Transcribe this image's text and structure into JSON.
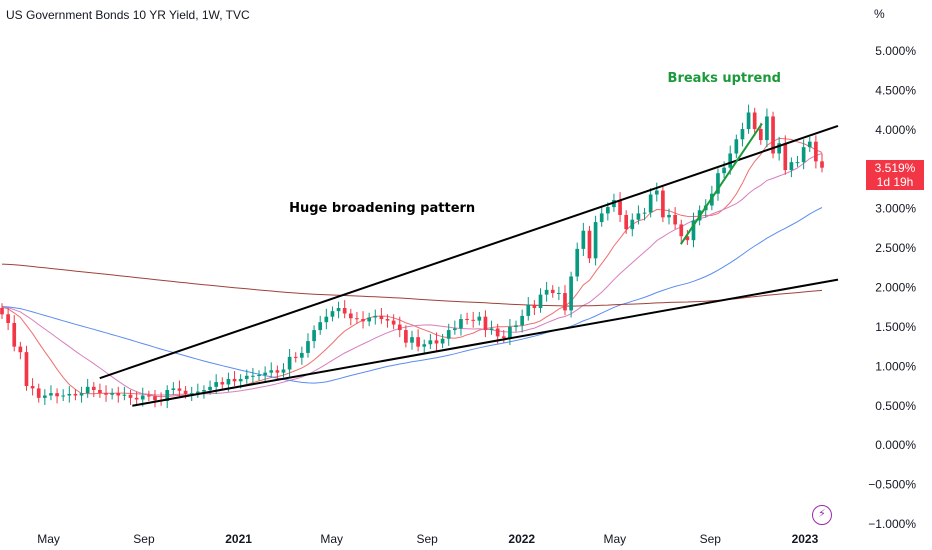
{
  "header": {
    "title": "US Government Bonds 10 YR Yield, 1W, TVC",
    "unit": "%"
  },
  "price_badge": {
    "value": "3.519%",
    "countdown": "1d 19h"
  },
  "colors": {
    "up": "#089981",
    "down": "#f23645",
    "trendline": "#000000",
    "annotation_green": "#1a9a3a",
    "ma_fast": "#f06e6e",
    "ma_pink": "#d77fc1",
    "ma_blue": "#5b8def",
    "ma_brown": "#a0403a"
  },
  "chart_data": {
    "type": "candlestick",
    "ylim": [
      -1.0,
      5.0
    ],
    "yticks": [
      "5.000%",
      "4.500%",
      "4.000%",
      "3.000%",
      "2.500%",
      "2.000%",
      "1.500%",
      "1.000%",
      "0.500%",
      "0.000%",
      "−0.500%",
      "−1.000%"
    ],
    "ytick_values": [
      5.0,
      4.5,
      4.0,
      3.0,
      2.5,
      2.0,
      1.5,
      1.0,
      0.5,
      0.0,
      -0.5,
      -1.0
    ],
    "xlim": [
      "2020-03-02",
      "2023-01-23"
    ],
    "xticks": [
      {
        "label": "May",
        "date": "2020-05-01",
        "bold": false
      },
      {
        "label": "Sep",
        "date": "2020-09-01",
        "bold": false
      },
      {
        "label": "2021",
        "date": "2021-01-01",
        "bold": true
      },
      {
        "label": "May",
        "date": "2021-05-01",
        "bold": false
      },
      {
        "label": "Sep",
        "date": "2021-09-01",
        "bold": false
      },
      {
        "label": "2022",
        "date": "2022-01-01",
        "bold": true
      },
      {
        "label": "May",
        "date": "2022-05-01",
        "bold": false
      },
      {
        "label": "Sep",
        "date": "2022-09-01",
        "bold": false
      },
      {
        "label": "2023",
        "date": "2023-01-01",
        "bold": true
      }
    ],
    "close": [
      1.66,
      1.55,
      1.25,
      1.18,
      0.75,
      0.72,
      0.6,
      0.63,
      0.66,
      0.62,
      0.63,
      0.65,
      0.63,
      0.66,
      0.74,
      0.7,
      0.66,
      0.64,
      0.66,
      0.63,
      0.64,
      0.6,
      0.58,
      0.63,
      0.62,
      0.57,
      0.56,
      0.7,
      0.72,
      0.69,
      0.65,
      0.66,
      0.68,
      0.7,
      0.74,
      0.8,
      0.77,
      0.84,
      0.81,
      0.84,
      0.88,
      0.88,
      0.89,
      0.92,
      0.95,
      0.92,
      0.96,
      1.12,
      1.11,
      1.17,
      1.32,
      1.46,
      1.56,
      1.63,
      1.7,
      1.74,
      1.67,
      1.61,
      1.6,
      1.57,
      1.62,
      1.64,
      1.6,
      1.58,
      1.53,
      1.46,
      1.3,
      1.37,
      1.25,
      1.28,
      1.33,
      1.29,
      1.35,
      1.46,
      1.48,
      1.6,
      1.59,
      1.58,
      1.63,
      1.46,
      1.48,
      1.38,
      1.36,
      1.5,
      1.52,
      1.64,
      1.78,
      1.74,
      1.91,
      1.97,
      1.93,
      1.93,
      1.71,
      2.14,
      2.49,
      2.72,
      2.37,
      2.83,
      2.94,
      3.02,
      3.11,
      2.92,
      2.74,
      2.86,
      2.94,
      2.95,
      3.18,
      3.23,
      2.89,
      2.92,
      2.8,
      2.65,
      2.6,
      2.85,
      2.98,
      3.04,
      3.19,
      3.45,
      3.52,
      3.7,
      3.88,
      4.01,
      4.22,
      4.01,
      3.87,
      4.17,
      3.7,
      3.83,
      3.49,
      3.59,
      3.59,
      3.78,
      3.85,
      3.6,
      3.52
    ],
    "moving_averages": [
      {
        "key": "ma_fast",
        "period": 10
      },
      {
        "key": "ma_pink",
        "period": 20
      },
      {
        "key": "ma_blue",
        "period": 50
      },
      {
        "key": "ma_brown",
        "period": 200
      }
    ],
    "trendlines": [
      {
        "from": {
          "date": "2020-07-06",
          "y": 0.85
        },
        "to": {
          "date": "2023-01-23",
          "y": 4.05
        },
        "color": "trendline"
      },
      {
        "from": {
          "date": "2020-08-17",
          "y": 0.5
        },
        "to": {
          "date": "2023-01-23",
          "y": 2.1
        },
        "color": "trendline"
      },
      {
        "from": {
          "date": "2022-07-25",
          "y": 2.55
        },
        "to": {
          "date": "2022-10-17",
          "y": 4.08
        },
        "color": "annotation_green"
      }
    ],
    "annotations": [
      {
        "text": "Breaks uptrend",
        "date": "2022-09-19",
        "y": 4.67,
        "color": "annotation_green"
      },
      {
        "text": "Huge broadening pattern",
        "date": "2021-07-05",
        "y": 3.02,
        "color": "trendline"
      }
    ]
  }
}
